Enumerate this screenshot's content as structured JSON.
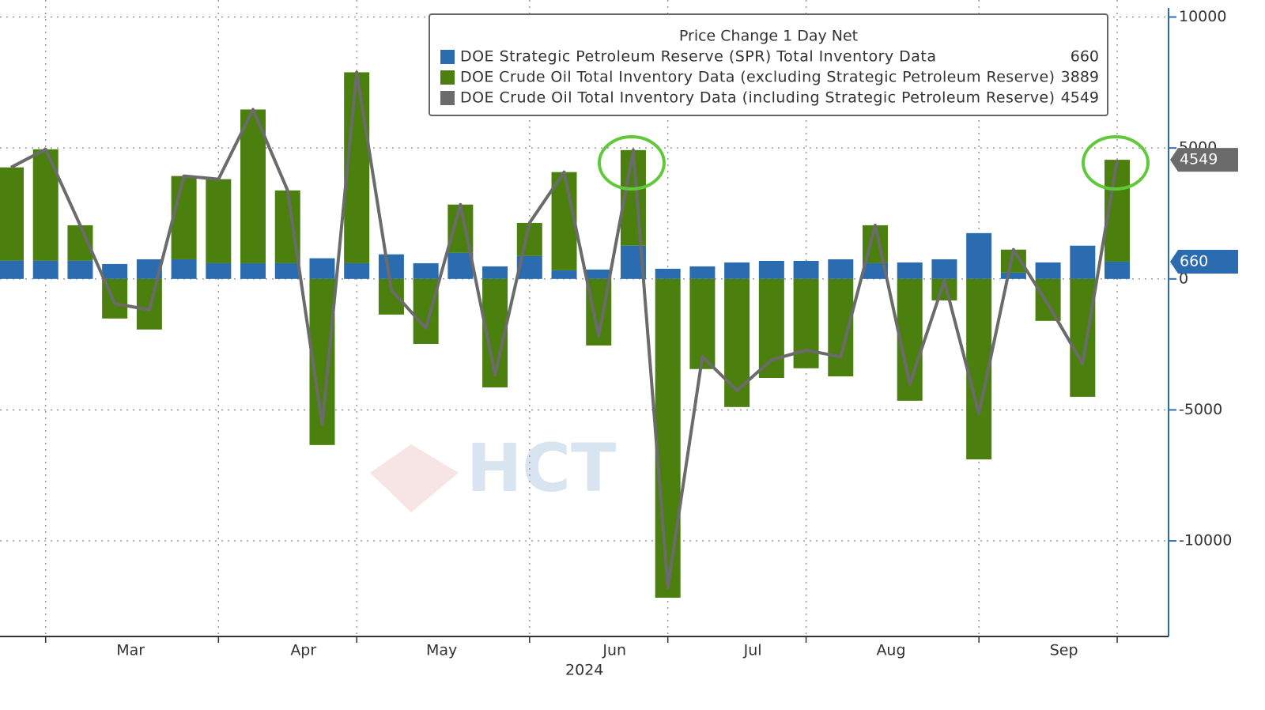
{
  "chart_data": {
    "type": "bar",
    "stacked": true,
    "legend_title": "Price Change 1 Day Net",
    "xlabel": "2024",
    "watermark": "HCT",
    "categories": [
      null,
      null,
      null,
      "Mar",
      null,
      null,
      null,
      null,
      "Apr",
      null,
      null,
      null,
      "May",
      null,
      null,
      null,
      null,
      "Jun",
      null,
      null,
      null,
      "Jul",
      null,
      null,
      null,
      "Aug",
      null,
      null,
      null,
      null,
      "Sep",
      null,
      null
    ],
    "series": [
      {
        "name": "DOE Strategic Petroleum Reserve (SPR) Total Inventory Data",
        "color": "#2b6cb0",
        "kind": "bar",
        "values": [
          700,
          700,
          700,
          570,
          750,
          750,
          600,
          600,
          600,
          790,
          600,
          940,
          600,
          1000,
          480,
          880,
          330,
          360,
          1270,
          390,
          480,
          630,
          690,
          690,
          750,
          600,
          630,
          750,
          1750,
          240,
          630,
          1270,
          660
        ]
      },
      {
        "name": "DOE Crude Oil Total Inventory Data (excluding Strategic Petroleum Reserve)",
        "color": "#4b7f0e",
        "kind": "bar",
        "values": [
          3560,
          4250,
          1350,
          -1510,
          -1930,
          3180,
          3210,
          5870,
          2780,
          -6340,
          7290,
          -1360,
          -2480,
          1840,
          -4140,
          1260,
          3750,
          -2540,
          3650,
          -12170,
          -3440,
          -4890,
          -3780,
          -3410,
          -3720,
          1450,
          -4650,
          -820,
          -6890,
          880,
          -1600,
          -4500,
          3889
        ]
      },
      {
        "name": "DOE Crude Oil Total Inventory Data (including Strategic Petroleum Reserve)",
        "color": "#6b6b6b",
        "kind": "line",
        "values": [
          4260,
          4950,
          2050,
          -940,
          -1180,
          3930,
          3810,
          6470,
          3380,
          -5550,
          7890,
          -420,
          -1880,
          2840,
          -3660,
          2140,
          4080,
          -2180,
          4920,
          -11780,
          -2960,
          -4260,
          -3090,
          -2720,
          -2970,
          2050,
          -4020,
          -70,
          -5140,
          1120,
          -970,
          -3230,
          4549
        ]
      }
    ],
    "ylim": [
      -13650,
      10650
    ],
    "yticks": [
      -10000,
      -5000,
      0,
      5000,
      10000
    ],
    "grid": true
  }
}
